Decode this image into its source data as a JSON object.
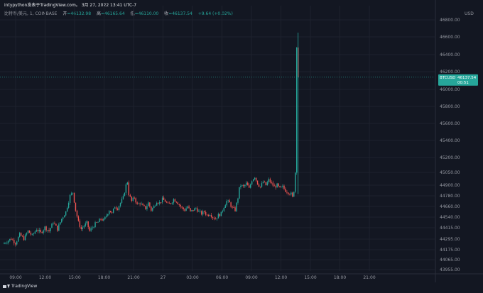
{
  "header": {
    "title": "intypython发表于TradingView.com。 3月 27, 2022 13:41 UTC-7",
    "symbol": "比特币/美元, 1, COINBASE",
    "open_label": "开",
    "open_value": "=46132.98",
    "high_label": "高",
    "high_value": "=46165.64",
    "low_label": "低",
    "low_value": "=46110.00",
    "close_label": "收",
    "close_value": "=46137.54",
    "change_value": "+9.64 (+0.02%)"
  },
  "price_badge": {
    "symbol": "BTCUSD",
    "price": "46137.54",
    "countdown": "00:51"
  },
  "footer": {
    "logo_text": "TradingView"
  },
  "chart_data": {
    "type": "candlestick",
    "currency_label": "USD",
    "x_ticks": [
      "09:00",
      "12:00",
      "15:00",
      "18:00",
      "21:00",
      "27",
      "03:00",
      "06:00",
      "09:00",
      "12:00",
      "15:00",
      "18:00",
      "21:00"
    ],
    "y_ticks": [
      46800.0,
      46600.0,
      46400.0,
      46200.0,
      46000.0,
      45800.0,
      45600.0,
      45400.0,
      45200.0,
      45050.0,
      44900.0,
      44780.0,
      44660.0,
      44540.0,
      44415.0,
      44295.0,
      44175.0,
      44065.0,
      43955.0
    ],
    "last_price": 46137.54,
    "colors": {
      "up": "#26a69a",
      "down": "#ef5350",
      "background": "#131722",
      "grid": "#1e222d",
      "badge": "#26a69a"
    },
    "price_path": [
      [
        0,
        44240
      ],
      [
        3,
        44270
      ],
      [
        6,
        44300
      ],
      [
        9,
        44250
      ],
      [
        12,
        44340
      ],
      [
        15,
        44300
      ],
      [
        18,
        44380
      ],
      [
        21,
        44330
      ],
      [
        24,
        44400
      ],
      [
        27,
        44360
      ],
      [
        30,
        44420
      ],
      [
        33,
        44380
      ],
      [
        36,
        44480
      ],
      [
        39,
        44400
      ],
      [
        42,
        44520
      ],
      [
        45,
        44600
      ],
      [
        48,
        44780
      ],
      [
        50,
        44820
      ],
      [
        52,
        44620
      ],
      [
        54,
        44480
      ],
      [
        56,
        44400
      ],
      [
        58,
        44440
      ],
      [
        60,
        44470
      ],
      [
        62,
        44380
      ],
      [
        64,
        44420
      ],
      [
        66,
        44460
      ],
      [
        68,
        44480
      ],
      [
        70,
        44520
      ],
      [
        72,
        44500
      ],
      [
        74,
        44560
      ],
      [
        76,
        44620
      ],
      [
        78,
        44580
      ],
      [
        80,
        44660
      ],
      [
        82,
        44640
      ],
      [
        84,
        44700
      ],
      [
        86,
        44760
      ],
      [
        88,
        44900
      ],
      [
        89,
        44940
      ],
      [
        90,
        44800
      ],
      [
        92,
        44720
      ],
      [
        94,
        44760
      ],
      [
        96,
        44680
      ],
      [
        98,
        44700
      ],
      [
        100,
        44660
      ],
      [
        102,
        44640
      ],
      [
        104,
        44700
      ],
      [
        106,
        44620
      ],
      [
        108,
        44660
      ],
      [
        110,
        44720
      ],
      [
        112,
        44700
      ],
      [
        114,
        44740
      ],
      [
        116,
        44720
      ],
      [
        118,
        44680
      ],
      [
        120,
        44700
      ],
      [
        122,
        44740
      ],
      [
        124,
        44720
      ],
      [
        126,
        44680
      ],
      [
        128,
        44640
      ],
      [
        130,
        44620
      ],
      [
        132,
        44660
      ],
      [
        134,
        44600
      ],
      [
        136,
        44620
      ],
      [
        138,
        44640
      ],
      [
        140,
        44600
      ],
      [
        142,
        44580
      ],
      [
        144,
        44600
      ],
      [
        146,
        44560
      ],
      [
        148,
        44580
      ],
      [
        150,
        44540
      ],
      [
        152,
        44520
      ],
      [
        154,
        44560
      ],
      [
        156,
        44580
      ],
      [
        158,
        44660
      ],
      [
        160,
        44720
      ],
      [
        162,
        44700
      ],
      [
        164,
        44640
      ],
      [
        166,
        44620
      ],
      [
        168,
        44760
      ],
      [
        169,
        44860
      ],
      [
        170,
        44900
      ],
      [
        172,
        44880
      ],
      [
        174,
        44920
      ],
      [
        176,
        44860
      ],
      [
        178,
        44960
      ],
      [
        180,
        45000
      ],
      [
        182,
        44920
      ],
      [
        184,
        44880
      ],
      [
        186,
        44940
      ],
      [
        188,
        44900
      ],
      [
        190,
        44960
      ],
      [
        192,
        44920
      ],
      [
        194,
        44880
      ],
      [
        196,
        44900
      ],
      [
        198,
        44860
      ],
      [
        200,
        44880
      ],
      [
        202,
        44840
      ],
      [
        204,
        44820
      ],
      [
        206,
        44800
      ],
      [
        207,
        44760
      ],
      [
        208,
        44840
      ],
      [
        209,
        45050
      ],
      [
        210,
        46500
      ],
      [
        211,
        46137.54
      ]
    ]
  }
}
